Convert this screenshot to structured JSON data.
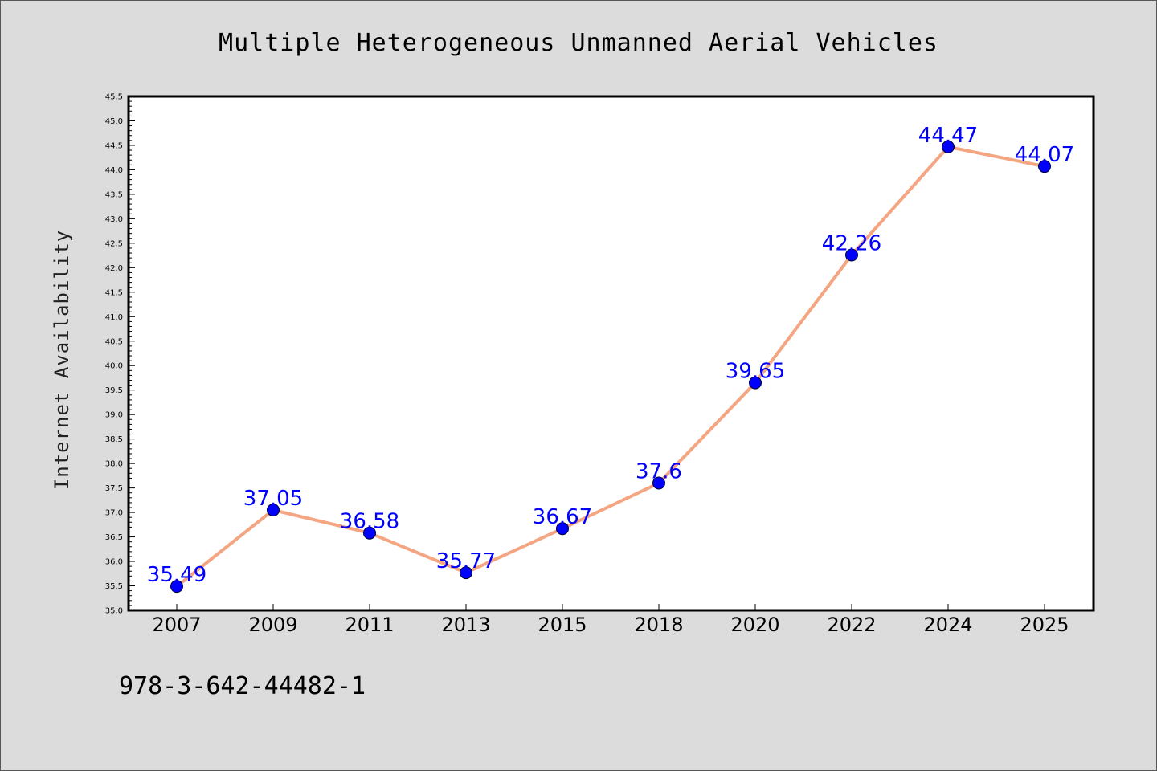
{
  "chart_data": {
    "type": "line",
    "title": "Multiple Heterogeneous Unmanned Aerial Vehicles",
    "xlabel": "",
    "ylabel": "Internet Availability",
    "categories": [
      "2007",
      "2009",
      "2011",
      "2013",
      "2015",
      "2018",
      "2020",
      "2022",
      "2024",
      "2025"
    ],
    "series": [
      {
        "values": [
          35.49,
          37.05,
          36.58,
          35.77,
          36.67,
          37.6,
          39.65,
          42.26,
          44.47,
          44.07
        ],
        "data_labels": [
          "35.49",
          "37.05",
          "36.58",
          "35.77",
          "36.67",
          "37.6",
          "39.65",
          "42.26",
          "44.47",
          "44.07"
        ]
      }
    ],
    "ylim": [
      35.0,
      45.5
    ],
    "yticks": [
      "35.0",
      "35.5",
      "36.0",
      "36.5",
      "37.0",
      "37.5",
      "38.0",
      "38.5",
      "39.0",
      "39.5",
      "40.0",
      "40.5",
      "41.0",
      "41.5",
      "42.0",
      "42.5",
      "43.0",
      "43.5",
      "44.0",
      "44.5",
      "45.0",
      "45.5"
    ],
    "grid": false,
    "line_color": "#f4a582",
    "marker_color": "#0000ff",
    "label_color": "#0000ff"
  },
  "footer": {
    "isbn": "978-3-642-44482-1"
  }
}
